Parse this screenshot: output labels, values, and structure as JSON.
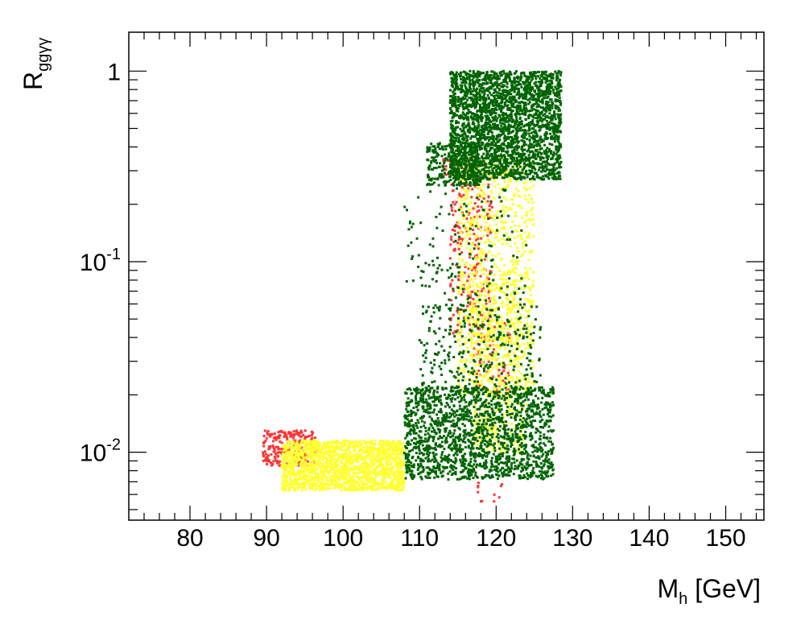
{
  "chart_data": {
    "type": "scatter",
    "title": "",
    "xlabel": {
      "main": "M",
      "sub": "h",
      "suffix": " [GeV]"
    },
    "ylabel": {
      "main": "R",
      "sub": "ggγγ"
    },
    "xlim": [
      72,
      155
    ],
    "ylim": [
      0.0044,
      1.6
    ],
    "yscale": "log",
    "grid": false,
    "legend": "none",
    "x_ticks": [
      80,
      90,
      100,
      110,
      120,
      130,
      140,
      150
    ],
    "x_tick_labels": [
      "80",
      "90",
      "100",
      "110",
      "120",
      "130",
      "140",
      "150"
    ],
    "y_ticks": [
      0.01,
      0.1,
      1
    ],
    "y_tick_labels": [
      {
        "base": "10",
        "exp": "-2"
      },
      {
        "base": "10",
        "exp": "-1"
      },
      {
        "base": "1",
        "exp": ""
      }
    ],
    "series": [
      {
        "color": "#ff3333",
        "regions": [
          {
            "x": [
              89.5,
              96.5
            ],
            "y": [
              0.0085,
              0.013
            ],
            "n": 260
          },
          {
            "x": [
              114.0,
              119.5
            ],
            "y": [
              0.04,
              0.3
            ],
            "n": 240
          },
          {
            "x": [
              113.0,
              117.0
            ],
            "y": [
              0.28,
              0.35
            ],
            "n": 40
          },
          {
            "x": [
              117.0,
              122.0
            ],
            "y": [
              0.02,
              0.05
            ],
            "n": 80
          },
          {
            "x": [
              117.5,
              121.0
            ],
            "y": [
              0.0055,
              0.007
            ],
            "n": 12
          }
        ]
      },
      {
        "color": "#ffff33",
        "regions": [
          {
            "x": [
              92.0,
              108.0
            ],
            "y": [
              0.0063,
              0.0115
            ],
            "n": 1700
          },
          {
            "x": [
              115.0,
              125.0
            ],
            "y": [
              0.02,
              0.35
            ],
            "n": 900
          },
          {
            "x": [
              117.0,
              124.0
            ],
            "y": [
              0.01,
              0.025
            ],
            "n": 220
          },
          {
            "x": [
              116.0,
              123.0
            ],
            "y": [
              0.03,
              0.09
            ],
            "n": 220
          }
        ]
      },
      {
        "color": "#006400",
        "regions": [
          {
            "x": [
              114.0,
              128.5
            ],
            "y": [
              0.27,
              1.0
            ],
            "n": 2600
          },
          {
            "x": [
              111.0,
              118.0
            ],
            "y": [
              0.25,
              0.42
            ],
            "n": 320
          },
          {
            "x": [
              108.0,
              127.5
            ],
            "y": [
              0.0072,
              0.022
            ],
            "n": 1700
          },
          {
            "x": [
              110.0,
              126.0
            ],
            "y": [
              0.02,
              0.06
            ],
            "n": 300
          },
          {
            "x": [
              108.0,
              124.0
            ],
            "y": [
              0.06,
              0.25
            ],
            "n": 140
          }
        ]
      }
    ]
  }
}
